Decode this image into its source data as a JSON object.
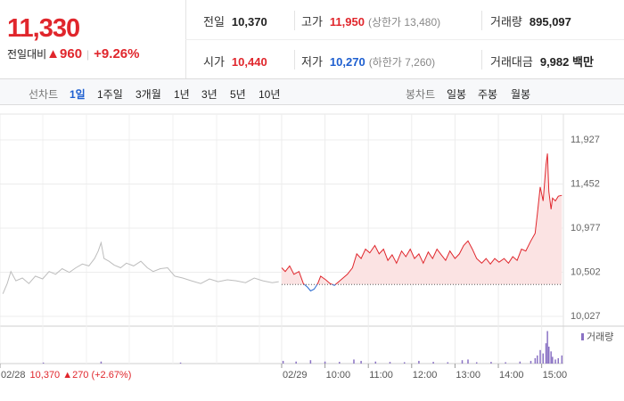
{
  "header": {
    "price": "11,330",
    "change_label": "전일대비",
    "change": "▲960",
    "change_pct": "+9.26%"
  },
  "info": [
    [
      {
        "label": "전일",
        "value": "10,370"
      },
      {
        "label": "고가",
        "value": "11,950",
        "note": "(상한가 13,480)"
      },
      {
        "label": "거래량",
        "value": "895,097"
      }
    ],
    [
      {
        "label": "시가",
        "value": "10,440"
      },
      {
        "label": "저가",
        "value": "10,270",
        "note": "(하한가 7,260)"
      },
      {
        "label": "거래대금",
        "value": "9,982",
        "unit": "백만"
      }
    ]
  ],
  "tabs": {
    "line_label": "선차트",
    "line_items": [
      "1일",
      "1주일",
      "3개월",
      "1년",
      "3년",
      "5년",
      "10년"
    ],
    "candle_label": "봉차트",
    "candle_items": [
      "일봉",
      "주봉",
      "월봉"
    ]
  },
  "chart_data": {
    "type": "line",
    "xlim": [
      0,
      864
    ],
    "ylim": [
      9931,
      12186
    ],
    "yticks": [
      {
        "value": 11927,
        "label": "11,927"
      },
      {
        "value": 11452,
        "label": "11,452"
      },
      {
        "value": 10977,
        "label": "10,977"
      },
      {
        "value": 10502,
        "label": "10,502"
      },
      {
        "value": 10027,
        "label": "10,027"
      }
    ],
    "xticks": [
      {
        "value": 0,
        "label": "02/28"
      },
      {
        "value": 390,
        "label": "02/29"
      },
      {
        "value": 450,
        "label": "10:00"
      },
      {
        "value": 510,
        "label": "11:00"
      },
      {
        "value": 570,
        "label": "12:00"
      },
      {
        "value": 630,
        "label": "13:00"
      },
      {
        "value": 690,
        "label": "14:00"
      },
      {
        "value": 750,
        "label": "15:00"
      }
    ],
    "prev_day": {
      "close": "10,370",
      "change": "▲270",
      "change_pct": "(+2.67%)"
    },
    "baseline": 10370,
    "grid": true,
    "series": [
      {
        "color": "#bdbdbd",
        "x": [
          4,
          10,
          15,
          22,
          31,
          40,
          49,
          59,
          68,
          77,
          86,
          96,
          105,
          114,
          123,
          131,
          136,
          140,
          144,
          151,
          158,
          167,
          175,
          185,
          195,
          204,
          212,
          222,
          232,
          242,
          253,
          265,
          278,
          290,
          302,
          315,
          327,
          340,
          352,
          364,
          377,
          386
        ],
        "values": [
          10270,
          10380,
          10510,
          10410,
          10440,
          10380,
          10460,
          10430,
          10510,
          10480,
          10540,
          10500,
          10550,
          10590,
          10570,
          10650,
          10730,
          10820,
          10650,
          10620,
          10580,
          10550,
          10600,
          10570,
          10620,
          10550,
          10510,
          10540,
          10550,
          10460,
          10440,
          10410,
          10380,
          10430,
          10400,
          10420,
          10410,
          10390,
          10440,
          10410,
          10390,
          10400
        ]
      },
      {
        "color": "#e0262c",
        "below_color": "#2a6bd1",
        "fill": "#fbe3e3",
        "x": [
          390,
          395,
          401,
          407,
          414,
          420,
          426,
          430,
          435,
          440,
          444,
          451,
          457,
          463,
          469,
          475,
          481,
          488,
          494,
          500,
          506,
          512,
          519,
          525,
          531,
          537,
          543,
          549,
          556,
          562,
          568,
          574,
          580,
          586,
          593,
          599,
          605,
          611,
          617,
          623,
          630,
          636,
          642,
          648,
          654,
          660,
          667,
          673,
          679,
          685,
          691,
          698,
          704,
          710,
          716,
          722,
          728,
          735,
          741,
          744,
          748,
          752,
          756,
          758,
          760,
          763,
          765,
          769,
          773,
          778
        ],
        "values": [
          10550,
          10510,
          10570,
          10480,
          10510,
          10380,
          10340,
          10300,
          10320,
          10380,
          10460,
          10420,
          10380,
          10360,
          10400,
          10440,
          10480,
          10550,
          10700,
          10650,
          10750,
          10710,
          10790,
          10700,
          10750,
          10630,
          10690,
          10600,
          10730,
          10670,
          10750,
          10650,
          10700,
          10600,
          10720,
          10650,
          10750,
          10690,
          10630,
          10730,
          10650,
          10700,
          10790,
          10840,
          10750,
          10650,
          10600,
          10650,
          10590,
          10650,
          10610,
          10650,
          10600,
          10670,
          10630,
          10750,
          10730,
          10840,
          10920,
          11130,
          11420,
          11270,
          11660,
          11780,
          11370,
          11180,
          11300,
          11270,
          11320,
          11330
        ]
      }
    ],
    "volume": {
      "name": "거래량",
      "color": "#8a72c4",
      "ylim": [
        0,
        50000
      ],
      "x": [
        60,
        140,
        250,
        392,
        410,
        430,
        450,
        470,
        490,
        500,
        520,
        540,
        560,
        580,
        600,
        620,
        640,
        648,
        660,
        680,
        700,
        720,
        735,
        741,
        744,
        748,
        752,
        756,
        758,
        760,
        763,
        765,
        769,
        773,
        778
      ],
      "values": [
        1500,
        3000,
        1500,
        4000,
        3000,
        5000,
        3000,
        2500,
        6000,
        4000,
        3000,
        2500,
        2000,
        4000,
        2500,
        2000,
        5000,
        6000,
        2000,
        2500,
        2000,
        3000,
        4000,
        8000,
        12000,
        20000,
        15000,
        30000,
        48000,
        25000,
        18000,
        10000,
        6000,
        8000,
        12000
      ]
    }
  }
}
